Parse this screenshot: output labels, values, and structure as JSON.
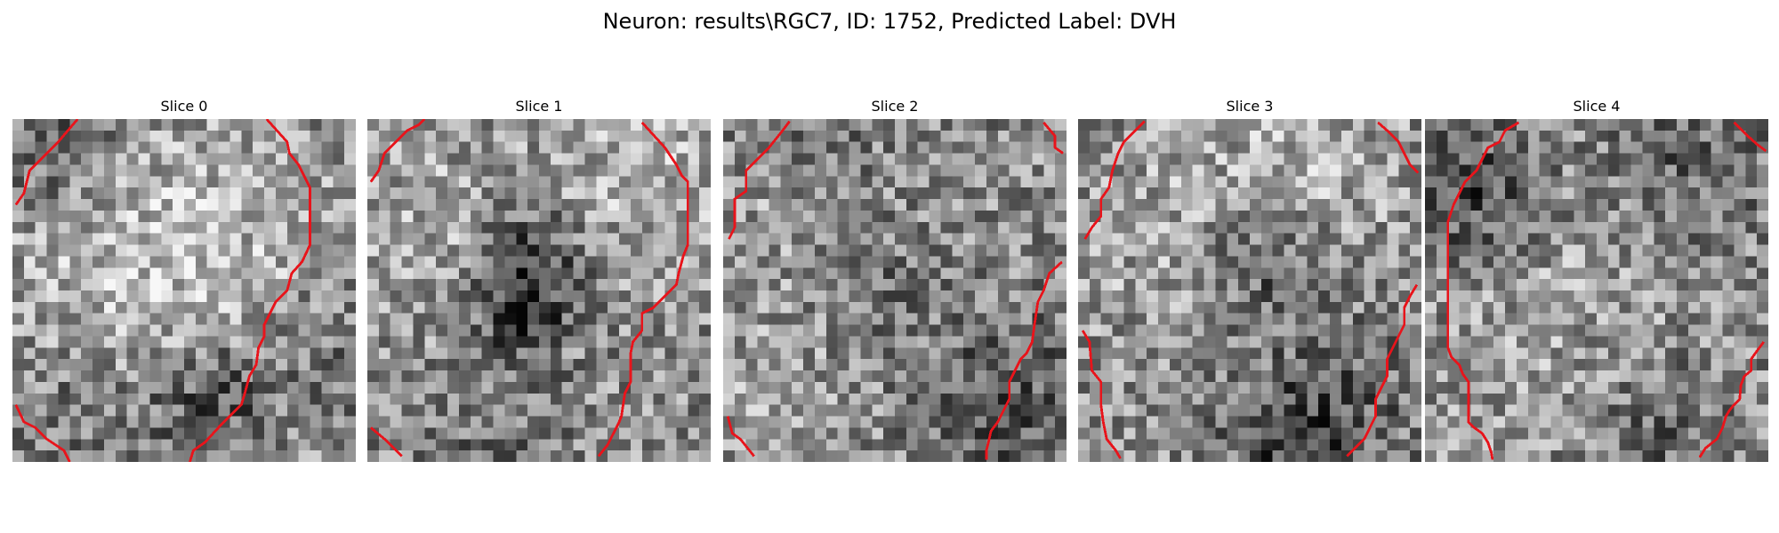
{
  "figure": {
    "title": "Neuron: results\\RGC7, ID: 1752, Predicted Label: DVH",
    "contour_color": "#e8141b",
    "panels": [
      {
        "title": "Slice 0"
      },
      {
        "title": "Slice 1"
      },
      {
        "title": "Slice 2"
      },
      {
        "title": "Slice 3"
      },
      {
        "title": "Slice 4"
      }
    ]
  }
}
